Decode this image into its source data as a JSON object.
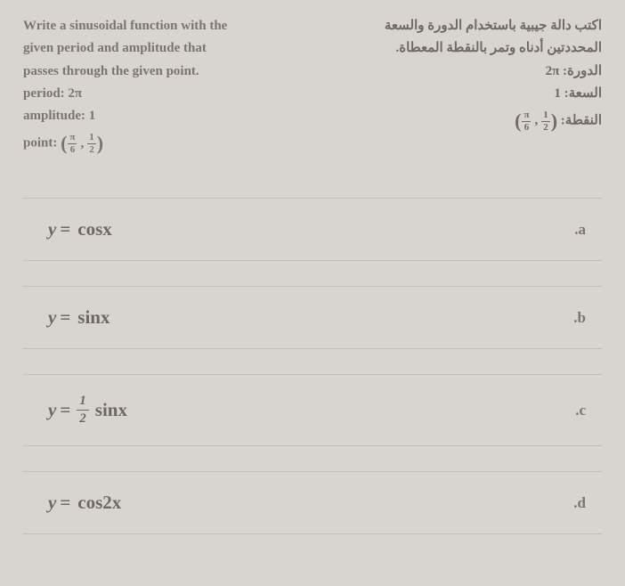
{
  "header": {
    "left": {
      "line1": "Write a sinusoidal function with the",
      "line2": "given period and amplitude that",
      "line3": "passes through the given point.",
      "period": "period: 2π",
      "amplitude": "amplitude: 1",
      "point_label": "point:",
      "point_frac": {
        "n1": "π",
        "d1": "6",
        "n2": "1",
        "d2": "2"
      }
    },
    "right": {
      "line1": "اكتب دالة جيبية باستخدام الدورة والسعة",
      "line2": "المحددتين أدناه وتمر بالنقطة المعطاة.",
      "period": "الدورة: 2π",
      "amplitude": "السعة: 1",
      "point_label": "النقطة:",
      "point_frac": {
        "n1": "π",
        "d1": "6",
        "n2": "1",
        "d2": "2"
      }
    }
  },
  "options": [
    {
      "key": "a",
      "lhs": "y",
      "eq": "=",
      "rhs_text": "cosx",
      "frac": null,
      "arg": "",
      "label": ".a"
    },
    {
      "key": "b",
      "lhs": "y",
      "eq": "=",
      "rhs_text": "sinx",
      "frac": null,
      "arg": "",
      "label": ".b"
    },
    {
      "key": "c",
      "lhs": "y",
      "eq": "=",
      "rhs_text": "sinx",
      "frac": {
        "n": "1",
        "d": "2"
      },
      "arg": "",
      "label": ".c"
    },
    {
      "key": "d",
      "lhs": "y",
      "eq": "=",
      "rhs_text": "cos2x",
      "frac": null,
      "arg": "",
      "label": ".d"
    }
  ],
  "colors": {
    "background": "#d8d4d0",
    "text_muted": "#7a7572",
    "text_formula": "#6d6865",
    "rule": "#c2bdb9"
  }
}
